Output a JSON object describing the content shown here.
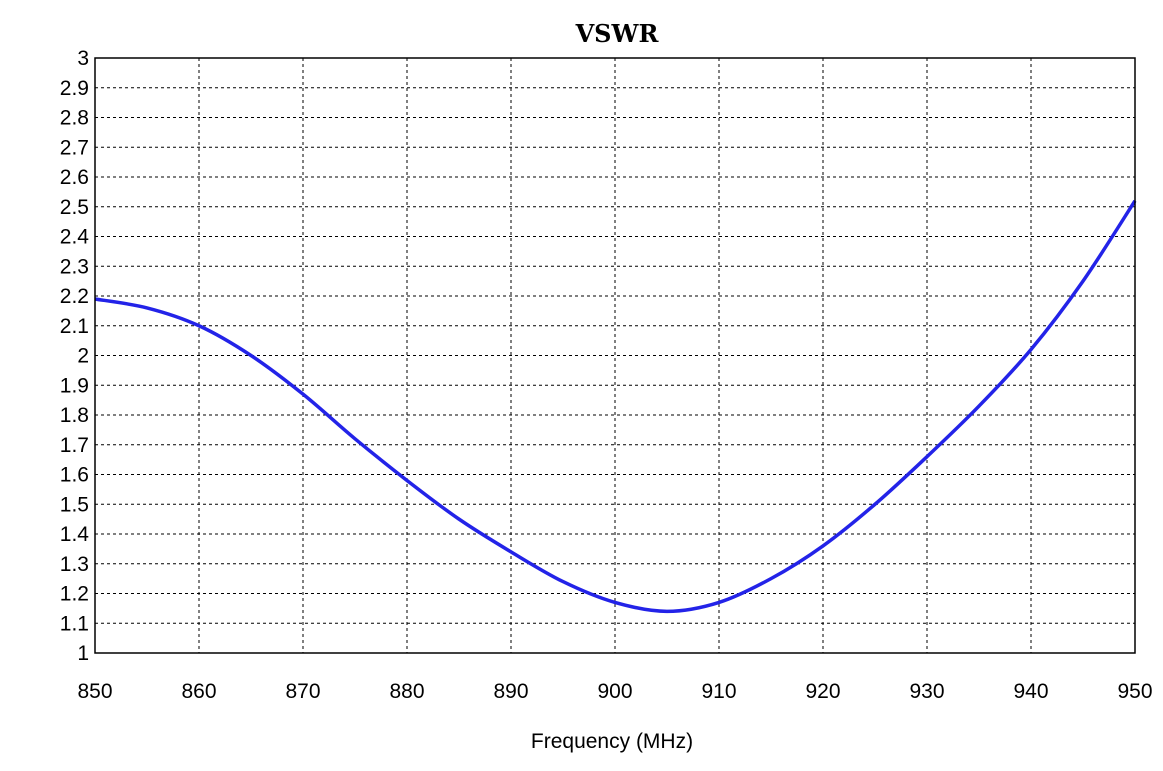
{
  "chart_data": {
    "type": "line",
    "title": "VSWR",
    "xlabel": "Frequency (MHz)",
    "ylabel": "",
    "xlim": [
      850,
      950
    ],
    "ylim": [
      1,
      3
    ],
    "x_ticks": [
      850,
      860,
      870,
      880,
      890,
      900,
      910,
      920,
      930,
      940,
      950
    ],
    "y_ticks": [
      1,
      1.1,
      1.2,
      1.3,
      1.4,
      1.5,
      1.6,
      1.7,
      1.8,
      1.9,
      2,
      2.1,
      2.2,
      2.3,
      2.4,
      2.5,
      2.6,
      2.7,
      2.8,
      2.9,
      3
    ],
    "y_tick_labels": [
      "1",
      "1.1",
      "1.2",
      "1.3",
      "1.4",
      "1.5",
      "1.6",
      "1.7",
      "1.8",
      "1.9",
      "2",
      "2.1",
      "2.2",
      "2.3",
      "2.4",
      "2.5",
      "2.6",
      "2.7",
      "2.8",
      "2.9",
      "3"
    ],
    "grid": true,
    "series": [
      {
        "color": "#2323e8",
        "x": [
          850,
          855,
          860,
          865,
          870,
          875,
          880,
          885,
          890,
          895,
          900,
          905,
          910,
          915,
          920,
          925,
          930,
          935,
          940,
          945,
          950
        ],
        "y": [
          2.19,
          2.16,
          2.1,
          2.0,
          1.87,
          1.72,
          1.58,
          1.45,
          1.34,
          1.24,
          1.17,
          1.14,
          1.17,
          1.25,
          1.36,
          1.5,
          1.66,
          1.83,
          2.02,
          2.25,
          2.52
        ]
      }
    ]
  }
}
